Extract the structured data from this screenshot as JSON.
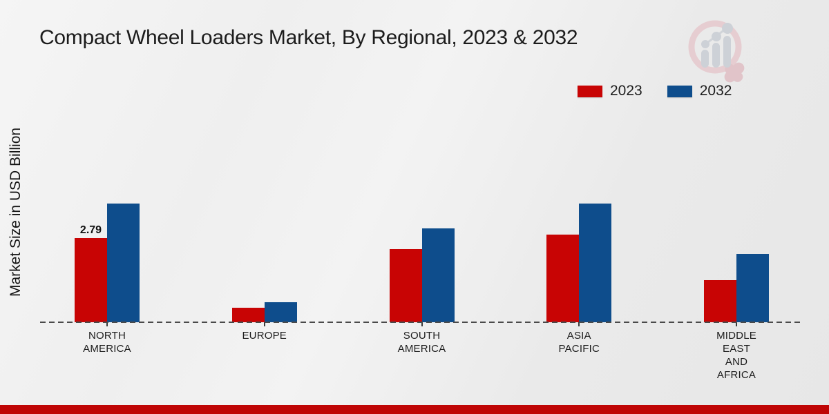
{
  "title": "Compact Wheel Loaders Market, By Regional, 2023 & 2032",
  "y_axis_label": "Market Size in USD Billion",
  "legend": [
    {
      "label": "2023",
      "color": "#c80404"
    },
    {
      "label": "2032",
      "color": "#0e4d8c"
    }
  ],
  "footer": {
    "bar_color": "#bf0505"
  },
  "logo": {
    "name": "market-research-magnifier-logo",
    "ring_color": "#e6c9cd",
    "bars_color": "#c9cdd4"
  },
  "chart_data": {
    "type": "bar",
    "title": "Compact Wheel Loaders Market, By Regional, 2023 & 2032",
    "xlabel": "",
    "ylabel": "Market Size in USD Billion",
    "ylim": [
      0,
      4.5
    ],
    "grid": false,
    "legend_position": "top-right",
    "categories": [
      "NORTH AMERICA",
      "EUROPE",
      "SOUTH AMERICA",
      "ASIA PACIFIC",
      "MIDDLE EAST AND AFRICA"
    ],
    "category_lines": [
      [
        "NORTH",
        "AMERICA"
      ],
      [
        "EUROPE"
      ],
      [
        "SOUTH",
        "AMERICA"
      ],
      [
        "ASIA",
        "PACIFIC"
      ],
      [
        "MIDDLE",
        "EAST",
        "AND",
        "AFRICA"
      ]
    ],
    "series": [
      {
        "name": "2023",
        "color": "#c80404",
        "values": [
          2.79,
          0.49,
          2.42,
          2.9,
          1.4
        ],
        "data_labels": [
          "2.79",
          "",
          "",
          "",
          ""
        ]
      },
      {
        "name": "2032",
        "color": "#0e4d8c",
        "values": [
          3.93,
          0.67,
          3.12,
          3.94,
          2.27
        ],
        "data_labels": [
          "",
          "",
          "",
          "",
          ""
        ]
      }
    ]
  }
}
